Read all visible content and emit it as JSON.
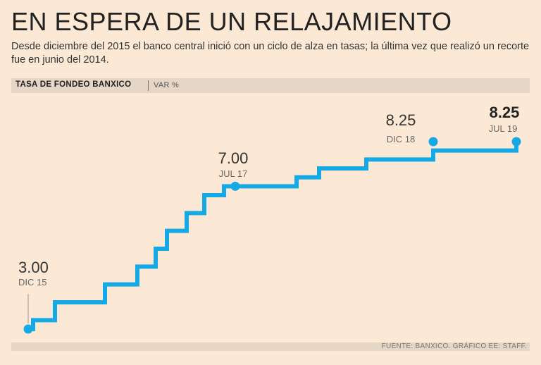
{
  "title": "EN ESPERA DE UN RELAJAMIENTO",
  "subtitle": "Desde diciembre del 2015 el banco central inició con un ciclo de alza en tasas; la última vez que realizó un recorte fue en junio del 2014.",
  "series_label": "TASA DE FONDEO BANXICO",
  "unit_label": "VAR %",
  "source": "FUENTE: BANXICO. GRÁFICO EE: STAFF.",
  "colors": {
    "line": "#15a9e6",
    "background": "#fce9d5",
    "bar": "#e6d6c5"
  },
  "chart_data": {
    "type": "line",
    "step": true,
    "title": "EN ESPERA DE UN RELAJAMIENTO",
    "ylabel": "VAR %",
    "ylim": [
      3.0,
      8.25
    ],
    "grid": false,
    "series": [
      {
        "name": "Tasa de fondeo Banxico",
        "x": [
          0,
          1,
          2,
          3,
          4,
          5,
          6,
          7,
          8,
          9,
          10,
          11,
          12,
          13,
          14,
          15,
          16,
          17,
          18,
          19,
          20,
          21,
          22
        ],
        "values": [
          3.0,
          3.25,
          3.75,
          4.25,
          4.75,
          5.25,
          5.75,
          6.25,
          6.75,
          7.0,
          7.0,
          7.25,
          7.5,
          7.75,
          7.75,
          8.0,
          8.25,
          8.25,
          8.25,
          8.25,
          8.25,
          8.25,
          8.25
        ]
      }
    ],
    "annotations": [
      {
        "value": "3.00",
        "date": "DIC 15",
        "bold": false
      },
      {
        "value": "7.00",
        "date": "JUL 17",
        "bold": false
      },
      {
        "value": "8.25",
        "date": "DIC 18",
        "bold": false
      },
      {
        "value": "8.25",
        "date": "JUL 19",
        "bold": true
      }
    ]
  }
}
